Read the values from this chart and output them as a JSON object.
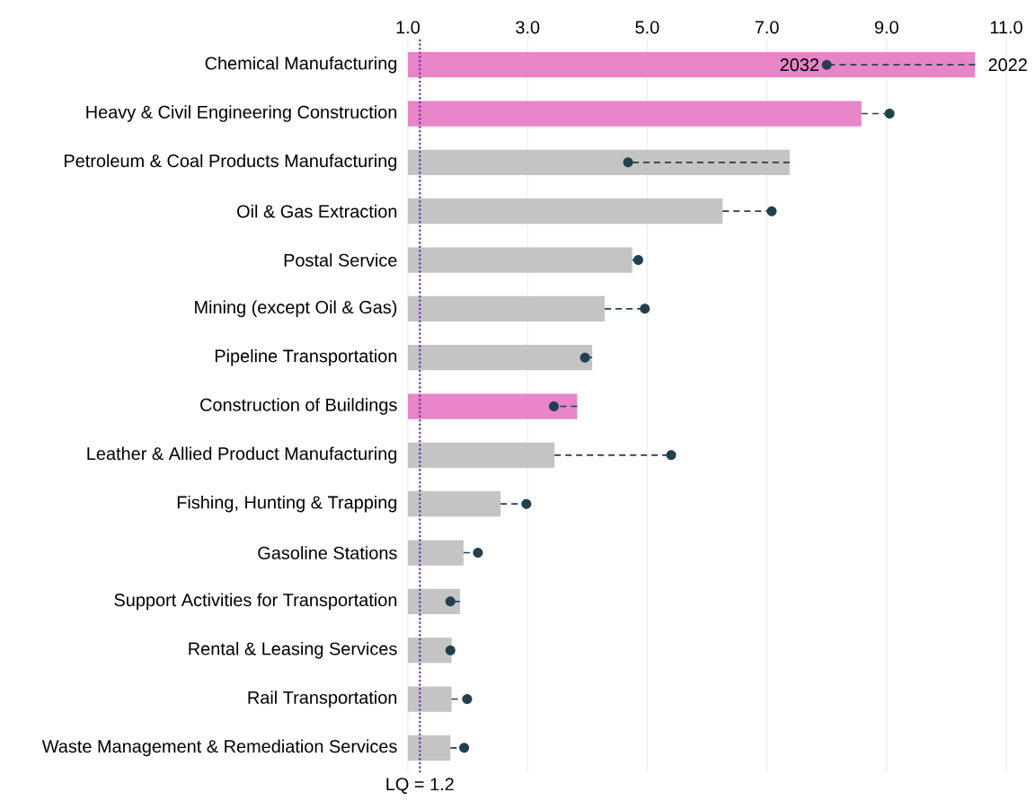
{
  "chart_data": {
    "type": "bar",
    "orientation": "horizontal",
    "categories": [
      "Chemical Manufacturing",
      "Heavy & Civil Engineering Construction",
      "Petroleum & Coal Products Manufacturing",
      "Oil & Gas Extraction",
      "Postal Service",
      "Mining (except Oil & Gas)",
      "Pipeline Transportation",
      "Construction of Buildings",
      "Leather & Allied Product Manufacturing",
      "Fishing, Hunting & Trapping",
      "Gasoline Stations",
      "Support Activities for Transportation",
      "Rental & Leasing Services",
      "Rail Transportation",
      "Waste Management & Remediation Services"
    ],
    "series": [
      {
        "values": [
          10.48,
          8.58,
          7.38,
          6.26,
          4.75,
          4.29,
          4.08,
          3.83,
          3.45,
          2.55,
          1.93,
          1.87,
          1.73,
          1.73,
          1.71
        ],
        "colors": [
          "#e884c8",
          "#e884c8",
          "#c4c4c4",
          "#c4c4c4",
          "#c4c4c4",
          "#c4c4c4",
          "#c4c4c4",
          "#e884c8",
          "#c4c4c4",
          "#c4c4c4",
          "#c4c4c4",
          "#c4c4c4",
          "#c4c4c4",
          "#c4c4c4",
          "#c4c4c4"
        ]
      },
      {
        "type": "scatter",
        "values": [
          8.0,
          9.05,
          4.68,
          7.08,
          4.85,
          4.96,
          3.96,
          3.44,
          5.4,
          2.98,
          2.17,
          1.71,
          1.71,
          1.99,
          1.94
        ],
        "errors": [
          [
            8.0,
            10.48
          ],
          [
            8.58,
            9.05
          ],
          [
            4.68,
            7.38
          ],
          [
            6.26,
            7.08
          ],
          [
            4.75,
            4.85
          ],
          [
            4.29,
            4.96
          ],
          [
            3.96,
            4.08
          ],
          [
            3.44,
            3.83
          ],
          [
            3.45,
            5.4
          ],
          [
            2.55,
            2.98
          ],
          [
            1.93,
            2.17
          ],
          [
            1.71,
            1.87
          ],
          null,
          [
            1.73,
            1.99
          ],
          [
            1.71,
            1.94
          ]
        ],
        "color": "#21414f",
        "marker": "circle",
        "line_style": "dashed"
      }
    ],
    "xlim": [
      1,
      11
    ],
    "xticks": [
      {
        "value": 1,
        "label": "1.0"
      },
      {
        "value": 3,
        "label": "3.0"
      },
      {
        "value": 5,
        "label": "5.0"
      },
      {
        "value": 7,
        "label": "7.0"
      },
      {
        "value": 9,
        "label": "9.0"
      },
      {
        "value": 11,
        "label": "11.0"
      }
    ],
    "grid": "x",
    "ref_lines": [
      {
        "axis": "x",
        "value": 1.2,
        "label": "LQ = 1.2",
        "color": "#7b3aab",
        "line_style": "dotted"
      }
    ],
    "annotations": [
      {
        "text": "2032",
        "x": 8.0,
        "y": "Chemical Manufacturing"
      },
      {
        "text": "2022",
        "x": 10.48,
        "y": "Chemical Manufacturing"
      }
    ]
  }
}
